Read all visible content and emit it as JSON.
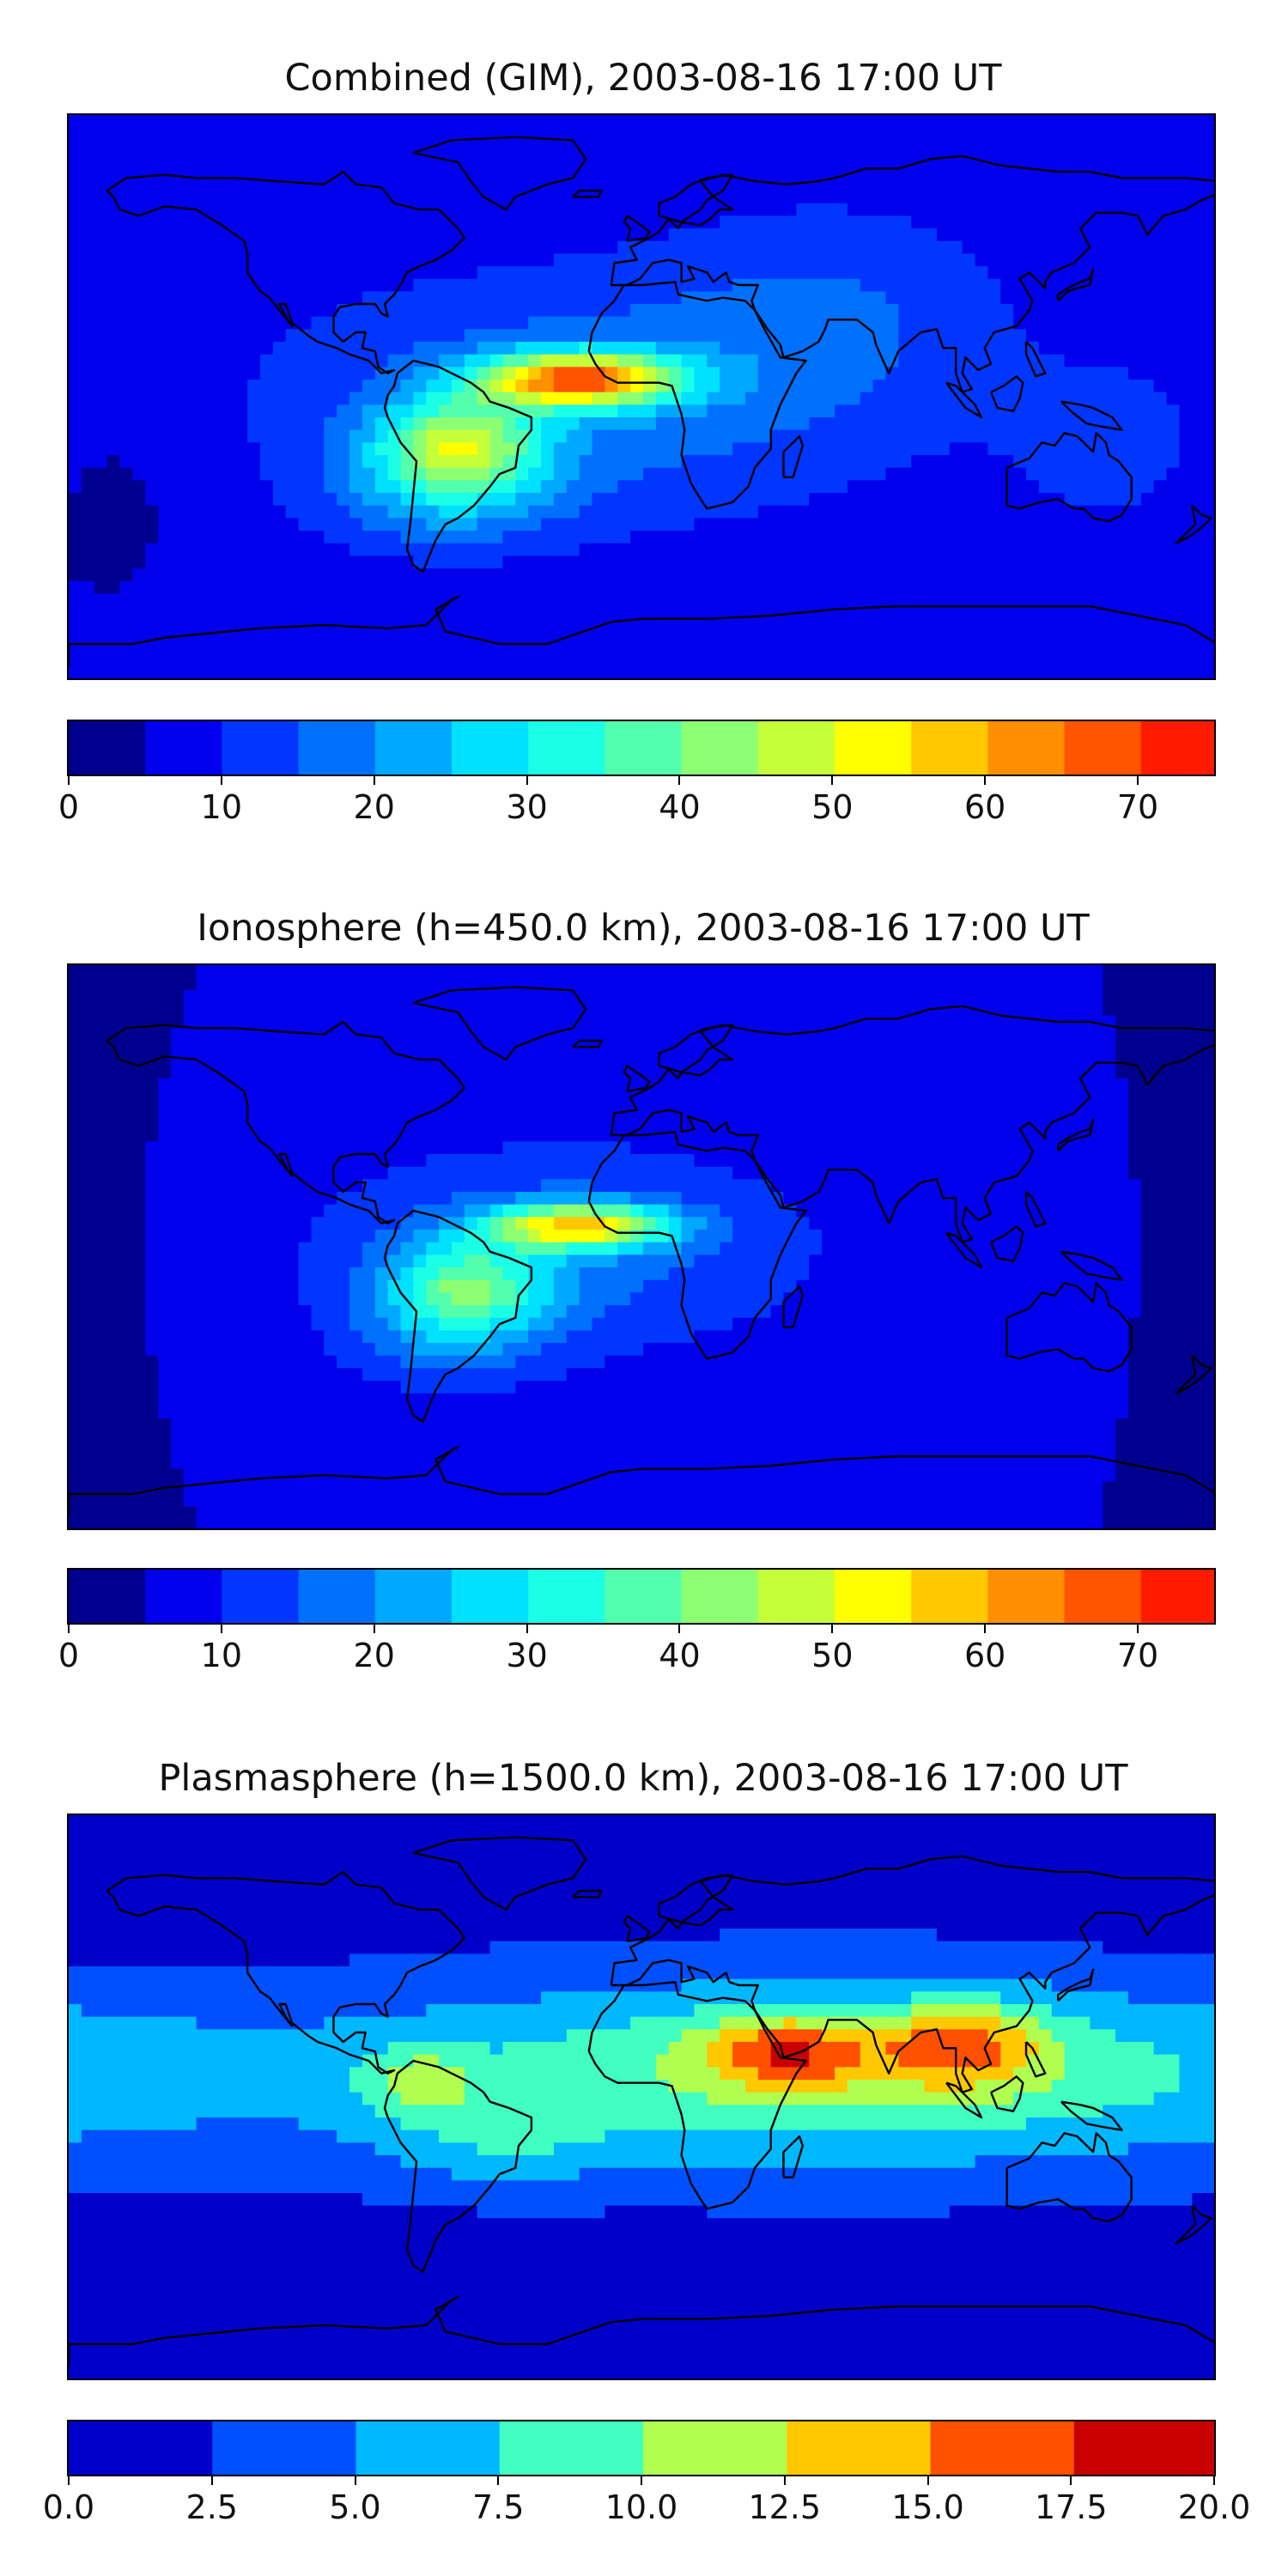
{
  "chart_data": [
    {
      "type": "heatmap",
      "title": "Combined (GIM), 2003-08-16 17:00 UT",
      "projection": "equirectangular world map with coastlines",
      "colorbar": {
        "levels": [
          0,
          5,
          10,
          15,
          20,
          25,
          30,
          35,
          40,
          45,
          50,
          55,
          60,
          65,
          70,
          75
        ],
        "tick_labels": [
          "0",
          "10",
          "20",
          "30",
          "40",
          "50",
          "60",
          "70"
        ],
        "tick_values": [
          0,
          10,
          20,
          30,
          40,
          50,
          60,
          70
        ],
        "colors": [
          "#00008f",
          "#0000ec",
          "#0036ff",
          "#0070ff",
          "#00a8ff",
          "#00e0ff",
          "#1affe5",
          "#53ffac",
          "#8cff73",
          "#c5ff3a",
          "#ffff00",
          "#ffc800",
          "#ff8e00",
          "#ff5400",
          "#ff1a00",
          "#b00000"
        ]
      },
      "value_range": [
        0,
        75
      ],
      "features": [
        {
          "name": "equatorial maximum over Atlantic",
          "lon": -20,
          "lat": 5,
          "value": 65
        },
        {
          "name": "secondary crest over South America",
          "lon": -55,
          "lat": -12,
          "value": 50
        },
        {
          "name": "polar background",
          "value": 5
        }
      ]
    },
    {
      "type": "heatmap",
      "title": "Ionosphere  (h=450.0 km), 2003-08-16 17:00 UT",
      "projection": "equirectangular world map with coastlines",
      "colorbar": {
        "levels": [
          0,
          5,
          10,
          15,
          20,
          25,
          30,
          35,
          40,
          45,
          50,
          55,
          60,
          65,
          70,
          75
        ],
        "tick_labels": [
          "0",
          "10",
          "20",
          "30",
          "40",
          "50",
          "60",
          "70"
        ],
        "tick_values": [
          0,
          10,
          20,
          30,
          40,
          50,
          60,
          70
        ],
        "colors": [
          "#00008f",
          "#0000ec",
          "#0036ff",
          "#0070ff",
          "#00a8ff",
          "#00e0ff",
          "#1affe5",
          "#53ffac",
          "#8cff73",
          "#c5ff3a",
          "#ffff00",
          "#ffc800",
          "#ff8e00",
          "#ff5400",
          "#ff1a00",
          "#b00000"
        ]
      },
      "value_range": [
        0,
        75
      ],
      "features": [
        {
          "name": "equatorial maximum over Atlantic",
          "lon": -20,
          "lat": 7,
          "value": 55
        },
        {
          "name": "secondary crest over South America",
          "lon": -55,
          "lat": -12,
          "value": 40
        },
        {
          "name": "polar background",
          "value": 5
        }
      ]
    },
    {
      "type": "heatmap",
      "title": "Plasmasphere (h=1500.0 km), 2003-08-16 17:00 UT",
      "projection": "equirectangular world map with coastlines",
      "colorbar": {
        "levels": [
          0,
          2.5,
          5,
          7.5,
          10,
          12.5,
          15,
          17.5,
          20
        ],
        "tick_labels": [
          "0.0",
          "2.5",
          "5.0",
          "7.5",
          "10.0",
          "12.5",
          "15.0",
          "17.5",
          "20.0"
        ],
        "tick_values": [
          0,
          2.5,
          5,
          7.5,
          10,
          12.5,
          15,
          17.5,
          20
        ],
        "colors": [
          "#0000c8",
          "#0050ff",
          "#00b8ff",
          "#40ffc0",
          "#b0ff50",
          "#ffc800",
          "#ff5000",
          "#c80000"
        ]
      },
      "value_range": [
        0,
        20
      ],
      "features": [
        {
          "name": "maximum over Arabia",
          "lon": 45,
          "lat": 15,
          "value": 16
        },
        {
          "name": "maximum over Southeast Asia",
          "lon": 100,
          "lat": 18,
          "value": 17
        },
        {
          "name": "local maximum over northern South America",
          "lon": -70,
          "lat": 5,
          "value": 13
        },
        {
          "name": "polar background",
          "value": 1
        }
      ]
    }
  ]
}
